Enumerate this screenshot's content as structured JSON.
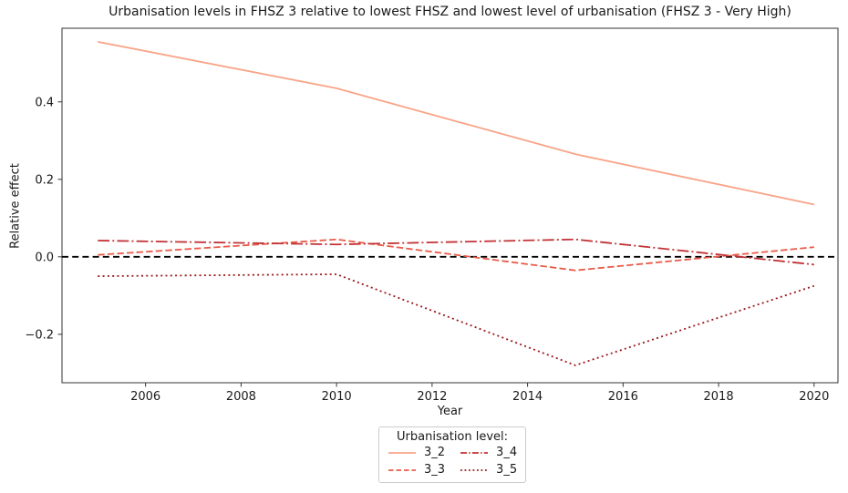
{
  "chart_data": {
    "type": "line",
    "title": "Urbanisation levels in FHSZ 3 relative to lowest FHSZ and lowest level of urbanisation (FHSZ 3 - Very High)",
    "xlabel": "Year",
    "ylabel": "Relative effect",
    "x": [
      2005,
      2010,
      2015,
      2020
    ],
    "series": [
      {
        "name": "3_2",
        "style": "solid",
        "color": "#f8a488",
        "values": [
          0.555,
          0.435,
          0.265,
          0.135
        ]
      },
      {
        "name": "3_3",
        "style": "dashed",
        "color": "#e85c4a",
        "values": [
          0.005,
          0.045,
          -0.035,
          0.025
        ]
      },
      {
        "name": "3_4",
        "style": "dashdot",
        "color": "#c23336",
        "values": [
          0.042,
          0.032,
          0.045,
          -0.02
        ]
      },
      {
        "name": "3_5",
        "style": "dotted",
        "color": "#9b191d",
        "values": [
          -0.05,
          -0.045,
          -0.28,
          -0.075
        ]
      }
    ],
    "reference_line": {
      "y": 0.0,
      "style": "dashed",
      "color": "#000000"
    },
    "xticks": [
      2006,
      2008,
      2010,
      2012,
      2014,
      2016,
      2018,
      2020
    ],
    "yticks": [
      -0.2,
      0.0,
      0.2,
      0.4
    ],
    "xlim": [
      2004.25,
      2020.5
    ],
    "ylim": [
      -0.325,
      0.59
    ],
    "grid": false,
    "axis_color": "#333333",
    "legend": {
      "title": "Urbanisation level:",
      "position": "below-axes",
      "entries": [
        "3_2",
        "3_3",
        "3_4",
        "3_5"
      ]
    }
  }
}
